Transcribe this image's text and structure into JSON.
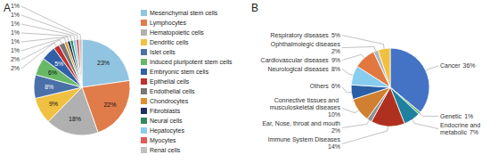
{
  "chart_data": [
    {
      "type": "pie",
      "title": "A",
      "categories": [
        "Mesenchymal stem cells",
        "Lymphocytes",
        "Hematopoietic cells",
        "Dendritic cells",
        "Islet cells",
        "Induced pluripotent stem cells",
        "Embryonic stem cells",
        "Epithelial cells",
        "Endothelial cells",
        "Chondrocytes",
        "Fibroblasts",
        "Neural cells",
        "Hepatocytes",
        "Myocytes",
        "Renal cells"
      ],
      "values": [
        23,
        22,
        18,
        9,
        8,
        6,
        5,
        2,
        2,
        1,
        1,
        1,
        1,
        1,
        1
      ],
      "value_labels": [
        "23%",
        "22%",
        "18%",
        "9%",
        "8%",
        "6%",
        "5%",
        "2%",
        "2%",
        "1%",
        "1%",
        "1%",
        "1%",
        "1%",
        "1%"
      ],
      "colors": [
        "#91c4e0",
        "#e07b4a",
        "#b0b0b0",
        "#f0c040",
        "#4a70a8",
        "#68b868",
        "#3060a8",
        "#c03030",
        "#787878",
        "#e09030",
        "#203060",
        "#308858",
        "#88ccee",
        "#e05858",
        "#c0c0c0"
      ],
      "data_labels": true,
      "legend": "right"
    },
    {
      "type": "pie",
      "title": "B",
      "categories": [
        "Cancer",
        "Genetic",
        "Endocrine and metabolic",
        "Immune System Diseases",
        "Ear, Nose, throat and mouth",
        "Connective tissues and musculoskeletal diseases",
        "Others",
        "Neurological diseases",
        "Cardiovascular diseases",
        "Ophthalmolegic diseases",
        "Respiratory diseases"
      ],
      "values": [
        36,
        1,
        7,
        14,
        2,
        10,
        6,
        8,
        9,
        2,
        5
      ],
      "value_labels": [
        "36%",
        "1%",
        "7%",
        "14%",
        "2%",
        "10%",
        "6%",
        "8%",
        "9%",
        "2%",
        "5%"
      ],
      "colors": [
        "#4472c4",
        "#70c070",
        "#2080a0",
        "#b03020",
        "#909090",
        "#d08030",
        "#2a5fa5",
        "#88ccee",
        "#e07840",
        "#b8b8b8",
        "#f0c040"
      ],
      "data_labels": true
    }
  ]
}
